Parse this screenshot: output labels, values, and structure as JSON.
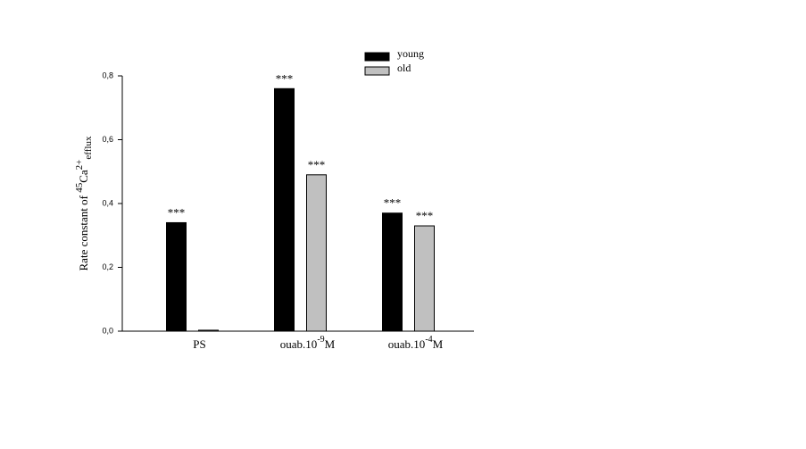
{
  "chart_data": {
    "type": "bar",
    "ylabel": {
      "text": "Rate constant of ",
      "isotope": "45",
      "ion": "Ca",
      "charge": "2+",
      "subscript": "efflux"
    },
    "categories": [
      "PS",
      "ouab.10",
      "ouab.10"
    ],
    "category_superscripts": [
      null,
      "-9",
      "-4"
    ],
    "category_suffixes": [
      null,
      "M",
      "M"
    ],
    "series": [
      {
        "name": "young",
        "color": "#000000",
        "values": [
          0.34,
          0.76,
          0.37
        ],
        "labels": [
          "***",
          "***",
          "***"
        ]
      },
      {
        "name": "old",
        "color": "#c0c0c0",
        "values": [
          0.003,
          0.49,
          0.33
        ],
        "labels": [
          null,
          "***",
          "***"
        ]
      }
    ],
    "ylim": [
      0,
      0.8
    ],
    "yticks": [
      {
        "value": 0,
        "label": "0,0"
      },
      {
        "value": 0.2,
        "label": "0,2"
      },
      {
        "value": 0.4,
        "label": "0,4"
      },
      {
        "value": 0.6,
        "label": "0,6"
      },
      {
        "value": 0.8,
        "label": "0,8"
      }
    ],
    "grid": false,
    "legend": "top"
  }
}
